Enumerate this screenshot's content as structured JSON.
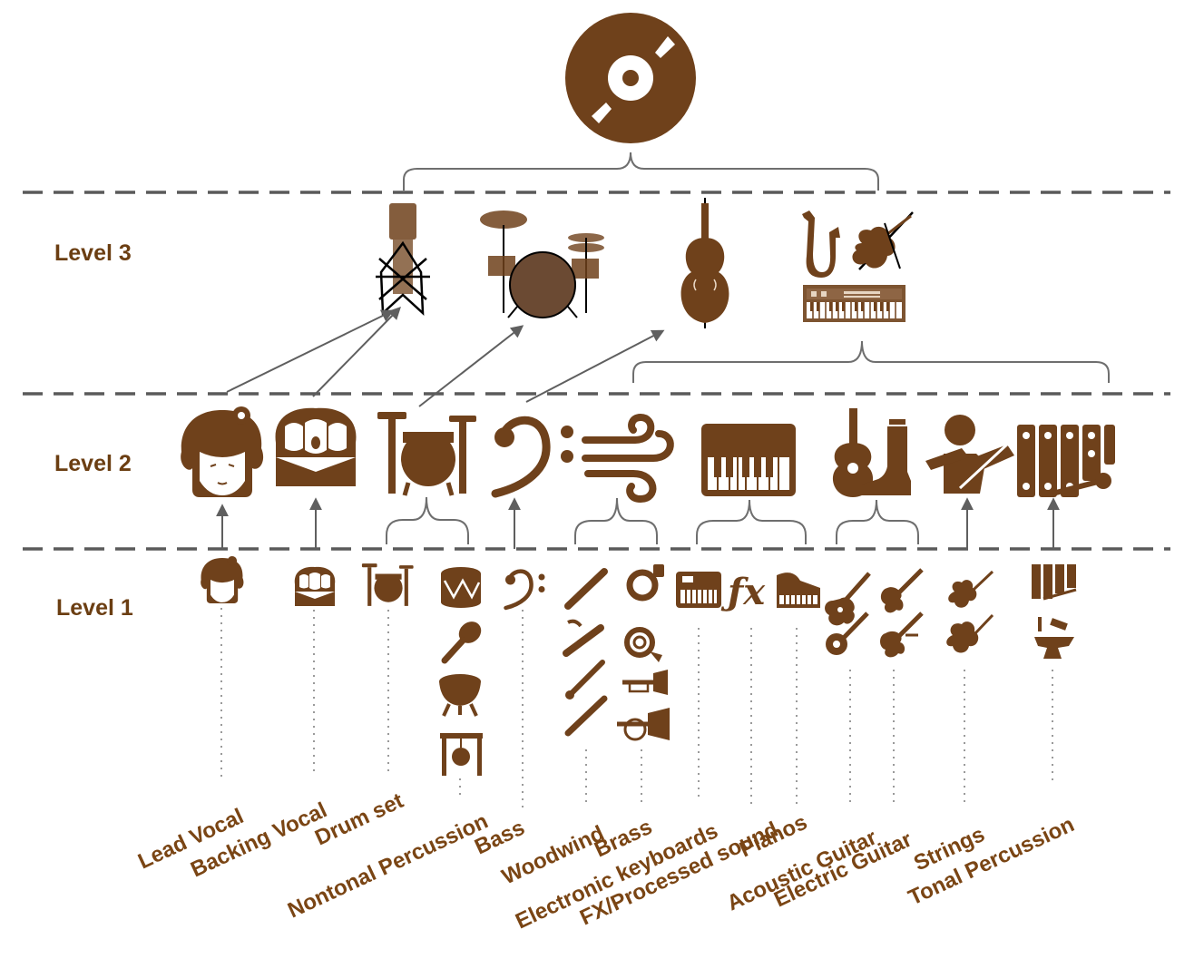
{
  "levels": {
    "level3": "Level 3",
    "level2": "Level 2",
    "level1": "Level 1"
  },
  "instruments": {
    "lead_vocal": "Lead Vocal",
    "backing_vocal": "Backing  Vocal",
    "drum_set": "Drum set",
    "nontonal_percussion": "Nontonal Percussion",
    "bass": "Bass",
    "woodwind": "Woodwind",
    "brass": "Brass",
    "electronic_keyboards": "Electronic keyboards",
    "fx_processed_sound": "FX/Processed sound",
    "pianos": "Pianos",
    "acoustic_guitar": "Acoustic Guitar",
    "electric_guitar": "Electric Guitar",
    "strings": "Strings",
    "tonal_percussion": "Tonal Percussion"
  },
  "icons": {
    "level4": [
      "vinyl-record-icon"
    ],
    "level3": [
      "microphone-icon",
      "drum-kit-icon",
      "double-bass-icon",
      "saxophone-icon",
      "violin-icon",
      "synthesizer-icon"
    ],
    "level2": [
      "singer-face-icon",
      "choir-icon",
      "drum-set-icon",
      "bass-clef-icon",
      "wind-icon",
      "piano-keys-icon",
      "guitar-boot-icon",
      "violinist-icon",
      "xylophone-icon"
    ],
    "level1": [
      "singer-face-icon",
      "choir-icon",
      "drum-set-icon",
      "snare-drum-icon",
      "maraca-icon",
      "timpani-icon",
      "gong-icon",
      "bass-clef-icon",
      "flute-icon",
      "bassoon-icon",
      "clarinet-icon",
      "oboe-icon",
      "tuba-icon",
      "french-horn-icon",
      "trumpet-icon",
      "flugelhorn-icon",
      "keyboard-icon",
      "fx-icon",
      "grand-piano-icon",
      "acoustic-guitar-icon",
      "banjo-icon",
      "electric-guitar-icon",
      "electric-bass-icon",
      "violin-icon",
      "viola-icon",
      "glockenspiel-icon",
      "anvil-icon"
    ]
  },
  "colors": {
    "icon_brown": "#6f411b",
    "label_brown": "#7a4514",
    "divider_gray": "#5a5a5a"
  }
}
